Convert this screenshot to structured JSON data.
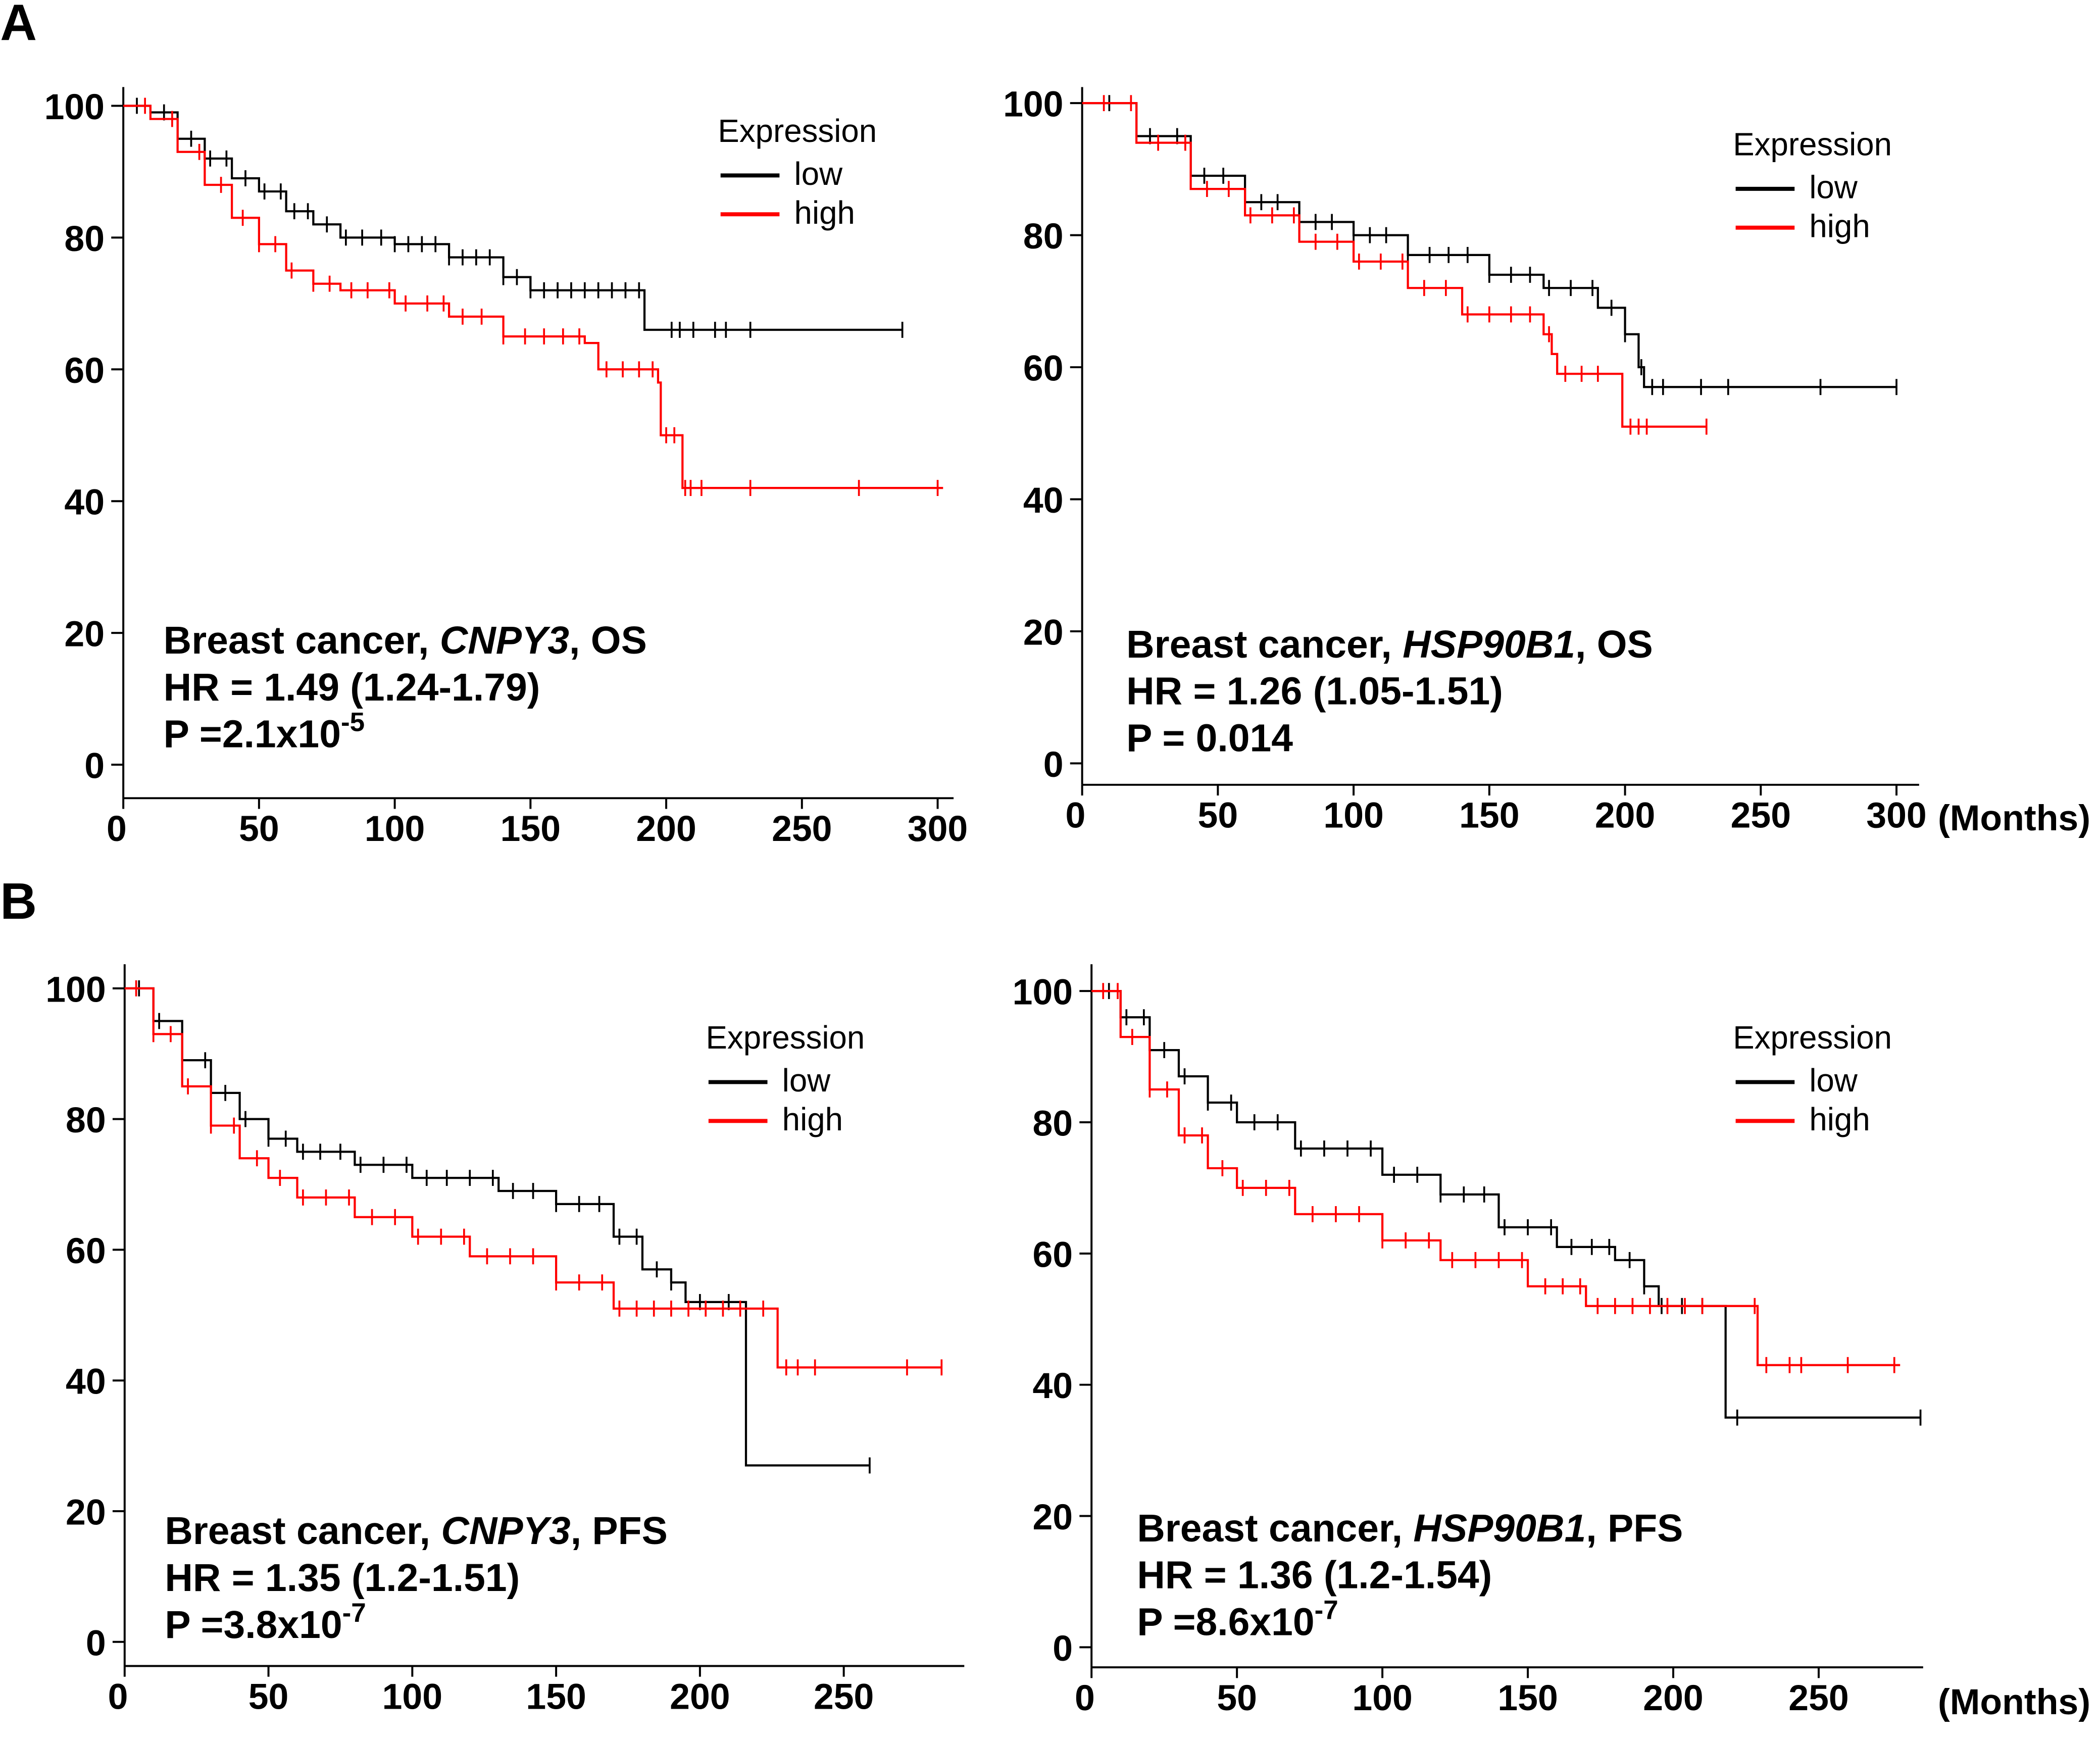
{
  "panel_labels": [
    "A",
    "B"
  ],
  "x_unit_label": "(Months)",
  "colors": {
    "low": "#000000",
    "high": "#ff0000"
  },
  "chart_data": [
    {
      "type": "line",
      "subtype": "kaplan-meier",
      "panel": "A",
      "title_prefix": "Breast cancer, ",
      "gene": "CNPY3",
      "title_suffix": ", OS",
      "hr": "HR = 1.49 (1.24-1.79)",
      "p_base": "P =2.1x10",
      "p_exp": "-5",
      "legend": {
        "title": "Expression",
        "entries": [
          "low",
          "high"
        ],
        "position": "top-right"
      },
      "xlim": [
        0,
        300
      ],
      "ylim": [
        0,
        100
      ],
      "xticks": [
        0,
        50,
        100,
        150,
        200,
        250,
        300
      ],
      "yticks": [
        0,
        20,
        40,
        60,
        80,
        100
      ],
      "series": [
        {
          "name": "low",
          "points": [
            [
              0,
              100
            ],
            [
              10,
              99
            ],
            [
              20,
              95
            ],
            [
              30,
              92
            ],
            [
              40,
              89
            ],
            [
              50,
              87
            ],
            [
              60,
              84
            ],
            [
              70,
              82
            ],
            [
              80,
              80
            ],
            [
              100,
              79
            ],
            [
              120,
              77
            ],
            [
              140,
              74
            ],
            [
              150,
              72
            ],
            [
              192,
              72
            ],
            [
              192,
              66
            ],
            [
              287,
              66
            ]
          ],
          "censored": [
            5,
            15,
            25,
            32,
            38,
            45,
            52,
            58,
            63,
            68,
            75,
            82,
            88,
            95,
            100,
            105,
            110,
            115,
            120,
            125,
            130,
            135,
            140,
            145,
            150,
            155,
            160,
            165,
            170,
            175,
            180,
            185,
            190,
            202,
            205,
            210,
            218,
            222,
            231,
            287
          ]
        },
        {
          "name": "high",
          "points": [
            [
              0,
              100
            ],
            [
              10,
              98
            ],
            [
              20,
              93
            ],
            [
              30,
              88
            ],
            [
              40,
              83
            ],
            [
              50,
              79
            ],
            [
              60,
              75
            ],
            [
              70,
              73
            ],
            [
              80,
              72
            ],
            [
              100,
              70
            ],
            [
              120,
              68
            ],
            [
              140,
              65
            ],
            [
              170,
              64
            ],
            [
              175,
              60
            ],
            [
              197,
              58
            ],
            [
              198,
              50
            ],
            [
              205,
              50
            ],
            [
              206,
              42
            ],
            [
              302,
              42
            ]
          ],
          "censored": [
            8,
            18,
            28,
            36,
            44,
            50,
            56,
            62,
            70,
            76,
            84,
            90,
            98,
            104,
            112,
            118,
            125,
            132,
            140,
            148,
            155,
            162,
            168,
            178,
            184,
            190,
            195,
            200,
            203,
            207,
            209,
            213,
            231,
            271,
            300
          ]
        }
      ]
    },
    {
      "type": "line",
      "subtype": "kaplan-meier",
      "panel": "A",
      "title_prefix": "Breast cancer, ",
      "gene": "HSP90B1",
      "title_suffix": ", OS",
      "hr": "HR = 1.26 (1.05-1.51)",
      "p_base": "P = 0.014",
      "p_exp": "",
      "legend": {
        "title": "Expression",
        "entries": [
          "low",
          "high"
        ],
        "position": "top-right"
      },
      "xlim": [
        0,
        300
      ],
      "ylim": [
        0,
        100
      ],
      "xticks": [
        0,
        50,
        100,
        150,
        200,
        250,
        300
      ],
      "yticks": [
        0,
        20,
        40,
        60,
        80,
        100
      ],
      "series": [
        {
          "name": "low",
          "points": [
            [
              0,
              100
            ],
            [
              20,
              95
            ],
            [
              40,
              89
            ],
            [
              60,
              85
            ],
            [
              80,
              82
            ],
            [
              100,
              80
            ],
            [
              120,
              77
            ],
            [
              150,
              74
            ],
            [
              170,
              72
            ],
            [
              190,
              69
            ],
            [
              200,
              65
            ],
            [
              205,
              60
            ],
            [
              207,
              57
            ],
            [
              300,
              57
            ]
          ],
          "censored": [
            10,
            25,
            35,
            45,
            52,
            60,
            66,
            72,
            80,
            86,
            92,
            100,
            106,
            112,
            120,
            128,
            135,
            142,
            150,
            158,
            165,
            172,
            180,
            188,
            195,
            200,
            206,
            210,
            214,
            228,
            238,
            272,
            300
          ]
        },
        {
          "name": "high",
          "points": [
            [
              0,
              100
            ],
            [
              20,
              94
            ],
            [
              40,
              87
            ],
            [
              60,
              83
            ],
            [
              80,
              79
            ],
            [
              100,
              76
            ],
            [
              120,
              72
            ],
            [
              140,
              68
            ],
            [
              170,
              65
            ],
            [
              173,
              62
            ],
            [
              175,
              59
            ],
            [
              198,
              59
            ],
            [
              199,
              51
            ],
            [
              230,
              51
            ]
          ],
          "censored": [
            8,
            18,
            28,
            38,
            46,
            54,
            62,
            70,
            78,
            86,
            94,
            102,
            110,
            118,
            126,
            134,
            142,
            150,
            158,
            165,
            172,
            178,
            184,
            190,
            202,
            205,
            208,
            230
          ]
        }
      ]
    },
    {
      "type": "line",
      "subtype": "kaplan-meier",
      "panel": "B",
      "title_prefix": "Breast cancer, ",
      "gene": "CNPY3",
      "title_suffix": ", PFS",
      "hr": "HR = 1.35 (1.2-1.51)",
      "p_base": "P =3.8x10",
      "p_exp": "-7",
      "legend": {
        "title": "Expression",
        "entries": [
          "low",
          "high"
        ],
        "position": "top-right"
      },
      "xlim": [
        0,
        290
      ],
      "ylim": [
        0,
        100
      ],
      "xticks": [
        0,
        50,
        100,
        150,
        200,
        250
      ],
      "yticks": [
        0,
        20,
        40,
        60,
        80,
        100
      ],
      "series": [
        {
          "name": "low",
          "points": [
            [
              0,
              100
            ],
            [
              10,
              95
            ],
            [
              20,
              89
            ],
            [
              30,
              84
            ],
            [
              40,
              80
            ],
            [
              50,
              77
            ],
            [
              60,
              75
            ],
            [
              80,
              73
            ],
            [
              100,
              71
            ],
            [
              130,
              69
            ],
            [
              150,
              67
            ],
            [
              170,
              62
            ],
            [
              180,
              57
            ],
            [
              190,
              55
            ],
            [
              195,
              52
            ],
            [
              215,
              52
            ],
            [
              216,
              27
            ],
            [
              259,
              27
            ]
          ],
          "censored": [
            5,
            12,
            20,
            28,
            35,
            42,
            50,
            56,
            62,
            68,
            75,
            82,
            90,
            98,
            105,
            112,
            120,
            128,
            135,
            142,
            150,
            158,
            165,
            172,
            178,
            185,
            190,
            200,
            210,
            259
          ]
        },
        {
          "name": "high",
          "points": [
            [
              0,
              100
            ],
            [
              10,
              93
            ],
            [
              20,
              85
            ],
            [
              30,
              79
            ],
            [
              40,
              74
            ],
            [
              50,
              71
            ],
            [
              60,
              68
            ],
            [
              80,
              65
            ],
            [
              100,
              62
            ],
            [
              120,
              59
            ],
            [
              150,
              55
            ],
            [
              170,
              51
            ],
            [
              200,
              51
            ],
            [
              225,
              51
            ],
            [
              227,
              42
            ],
            [
              284,
              42
            ]
          ],
          "censored": [
            4,
            10,
            16,
            22,
            30,
            38,
            46,
            54,
            62,
            70,
            78,
            86,
            94,
            102,
            110,
            118,
            126,
            134,
            142,
            150,
            158,
            166,
            172,
            178,
            184,
            190,
            196,
            202,
            208,
            214,
            222,
            230,
            234,
            240,
            272,
            284
          ]
        }
      ]
    },
    {
      "type": "line",
      "subtype": "kaplan-meier",
      "panel": "B",
      "title_prefix": "Breast cancer, ",
      "gene": "HSP90B1",
      "title_suffix": ", PFS",
      "hr": "HR = 1.36 (1.2-1.54)",
      "p_base": "P =8.6x10",
      "p_exp": "-7",
      "legend": {
        "title": "Expression",
        "entries": [
          "low",
          "high"
        ],
        "position": "top-right"
      },
      "xlim": [
        0,
        300
      ],
      "ylim": [
        0,
        100
      ],
      "xticks": [
        0,
        50,
        100,
        150,
        200,
        250
      ],
      "yticks": [
        0,
        20,
        40,
        60,
        80,
        100
      ],
      "series": [
        {
          "name": "low",
          "points": [
            [
              0,
              100
            ],
            [
              10,
              96
            ],
            [
              20,
              91
            ],
            [
              30,
              87
            ],
            [
              40,
              83
            ],
            [
              50,
              80
            ],
            [
              70,
              76
            ],
            [
              100,
              72
            ],
            [
              120,
              69
            ],
            [
              140,
              64
            ],
            [
              160,
              61
            ],
            [
              180,
              59
            ],
            [
              190,
              55
            ],
            [
              195,
              52
            ],
            [
              217,
              52
            ],
            [
              218,
              35
            ],
            [
              285,
              35
            ]
          ],
          "censored": [
            6,
            12,
            18,
            25,
            32,
            40,
            48,
            56,
            64,
            72,
            80,
            88,
            96,
            104,
            112,
            120,
            128,
            135,
            142,
            150,
            158,
            165,
            172,
            178,
            185,
            190,
            196,
            203,
            210,
            222,
            285
          ]
        },
        {
          "name": "high",
          "points": [
            [
              0,
              100
            ],
            [
              10,
              93
            ],
            [
              20,
              85
            ],
            [
              30,
              78
            ],
            [
              40,
              73
            ],
            [
              50,
              70
            ],
            [
              70,
              66
            ],
            [
              100,
              62
            ],
            [
              120,
              59
            ],
            [
              150,
              55
            ],
            [
              170,
              52
            ],
            [
              228,
              52
            ],
            [
              229,
              43
            ],
            [
              278,
              43
            ]
          ],
          "censored": [
            4,
            9,
            14,
            20,
            26,
            32,
            38,
            45,
            52,
            60,
            68,
            76,
            84,
            92,
            100,
            108,
            116,
            124,
            132,
            140,
            148,
            156,
            162,
            168,
            174,
            180,
            186,
            192,
            198,
            204,
            210,
            228,
            232,
            240,
            244,
            260,
            276
          ]
        }
      ]
    }
  ]
}
